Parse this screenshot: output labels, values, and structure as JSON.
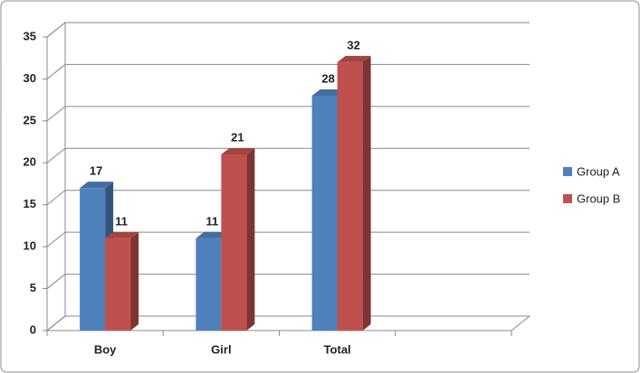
{
  "chart_data": {
    "type": "bar3d",
    "categories": [
      "Boy",
      "Girl",
      "Total",
      null
    ],
    "series": [
      {
        "name": "Group A",
        "color": "#4f81bd",
        "values": [
          17,
          11,
          28,
          null
        ]
      },
      {
        "name": "Group B",
        "color": "#c0504d",
        "values": [
          11,
          21,
          32,
          null
        ]
      }
    ],
    "ylim": [
      0,
      35
    ],
    "yticks": [
      0,
      5,
      10,
      15,
      20,
      25,
      30,
      35
    ],
    "grid": true,
    "legend": "right"
  }
}
